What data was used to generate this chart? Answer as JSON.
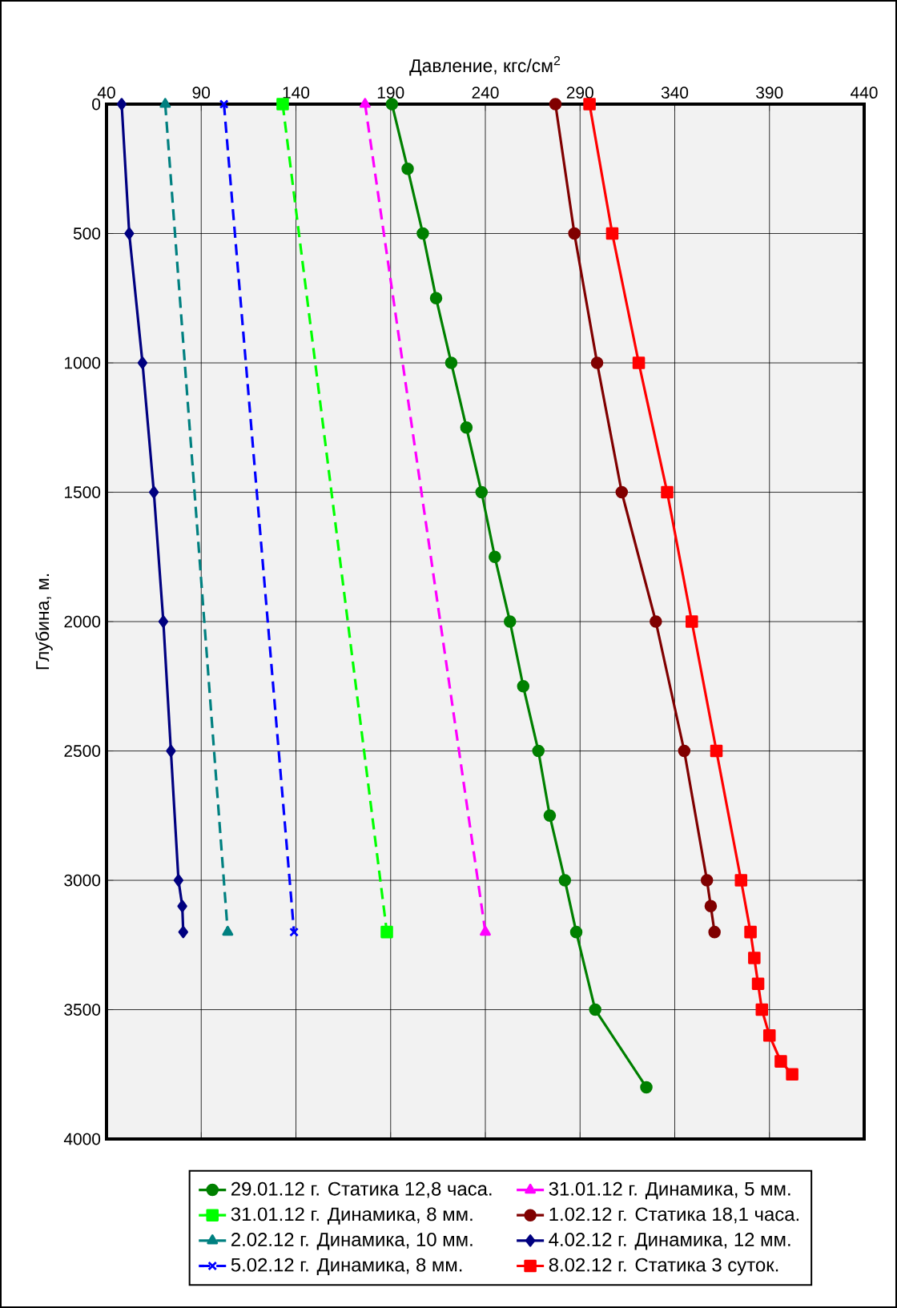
{
  "chart_data": {
    "type": "line",
    "xlabel": "Давление, кгс/см$^{2}$",
    "ylabel": "Глубина, м.",
    "xlim": [
      40,
      440
    ],
    "xticks": [
      40,
      90,
      140,
      190,
      240,
      290,
      340,
      390,
      440
    ],
    "ylim": [
      4000,
      0
    ],
    "yticks": [
      0,
      500,
      1000,
      1500,
      2000,
      2500,
      3000,
      3500,
      4000
    ],
    "grid": true,
    "legend": "bottom",
    "series": [
      {
        "name": "29.01.12 г. Статика 12,8 часа.",
        "color": "#008000",
        "marker": "circle",
        "line_style": "solid",
        "x": [
          190.7,
          199,
          207,
          214,
          222,
          230,
          238,
          245,
          253,
          260,
          268,
          274,
          282,
          288,
          298,
          325
        ],
        "values": [
          0,
          250,
          500,
          750,
          1000,
          1250,
          1500,
          1750,
          2000,
          2250,
          2500,
          2750,
          3000,
          3200,
          3500,
          3800
        ]
      },
      {
        "name": "31.01.12 г. Динамика, 5 мм.",
        "color": "#ff00ff",
        "marker": "triangle",
        "line_style": "dashed",
        "x": [
          176.5,
          240
        ],
        "values": [
          0,
          3200
        ]
      },
      {
        "name": "31.01.12 г. Динамика, 8 мм.",
        "color": "#00ff00",
        "marker": "square",
        "line_style": "dashed",
        "x": [
          133,
          188
        ],
        "values": [
          0,
          3200
        ]
      },
      {
        "name": "1.02.12 г. Статика 18,1 часа.",
        "color": "#800000",
        "marker": "circle",
        "line_style": "solid",
        "x": [
          277,
          287,
          299,
          312,
          330,
          345,
          357,
          359,
          361
        ],
        "values": [
          0,
          500,
          1000,
          1500,
          2000,
          2500,
          3000,
          3100,
          3200
        ]
      },
      {
        "name": "2.02.12 г. Динамика, 10 мм.",
        "color": "#008080",
        "marker": "triangle",
        "line_style": "dashed",
        "x": [
          71,
          104
        ],
        "values": [
          0,
          3200
        ]
      },
      {
        "name": "4.02.12 г. Динамика, 12 мм.",
        "color": "#000080",
        "marker": "diamond",
        "line_style": "solid",
        "x": [
          48,
          52,
          59,
          65,
          70,
          74,
          78,
          80,
          80.5
        ],
        "values": [
          0,
          500,
          1000,
          1500,
          2000,
          2500,
          3000,
          3100,
          3200
        ]
      },
      {
        "name": "5.02.12 г. Динамика, 8 мм.",
        "color": "#0000ff",
        "marker": "cross",
        "line_style": "dashed",
        "x": [
          102,
          139
        ],
        "values": [
          0,
          3200
        ]
      },
      {
        "name": "8.02.12 г. Статика 3 суток.",
        "color": "#ff0000",
        "marker": "square",
        "line_style": "solid",
        "x": [
          295,
          307,
          321,
          336,
          349,
          362,
          375,
          380,
          382,
          384,
          386,
          390,
          396,
          402
        ],
        "values": [
          0,
          500,
          1000,
          1500,
          2000,
          2500,
          3000,
          3200,
          3300,
          3400,
          3500,
          3600,
          3700,
          3750
        ]
      }
    ]
  }
}
